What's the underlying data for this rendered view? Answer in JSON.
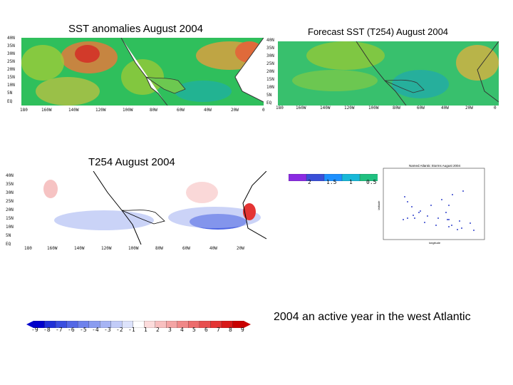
{
  "panels": {
    "sst": {
      "title": "SST anomalies August 2004",
      "lat_labels": [
        "40N",
        "35N",
        "30N",
        "25N",
        "20N",
        "15N",
        "10N",
        "5N",
        "EQ"
      ],
      "lon_labels": [
        "180",
        "160W",
        "140W",
        "120W",
        "100W",
        "80W",
        "60W",
        "40W",
        "20W",
        "0"
      ]
    },
    "forecast": {
      "title": "Forecast SST (T254) August 2004",
      "lat_labels": [
        "40N",
        "35N",
        "30N",
        "25N",
        "20N",
        "15N",
        "10N",
        "5N",
        "EQ"
      ],
      "lon_labels": [
        "180",
        "160W",
        "140W",
        "120W",
        "100W",
        "80W",
        "60W",
        "40W",
        "20W",
        "0"
      ]
    },
    "t254": {
      "title": "T254 August 2004",
      "lat_labels": [
        "40N",
        "35N",
        "30N",
        "25N",
        "20N",
        "15N",
        "10N",
        "5N",
        "EQ"
      ],
      "lon_labels": [
        "180",
        "160W",
        "140W",
        "120W",
        "100W",
        "80W",
        "60W",
        "40W",
        "20W"
      ]
    },
    "tracks": {
      "title": "Named Atlantic Storms August 2004",
      "xlabel": "longitude",
      "ylabel": "latitude"
    }
  },
  "colorbars": {
    "small": {
      "labels": [
        "2",
        "1.5",
        "1",
        "0.5"
      ],
      "colors": [
        "#8a2be2",
        "#3a4fd8",
        "#1e90ff",
        "#18b8d8",
        "#20c080"
      ]
    },
    "big": {
      "labels": [
        "-9",
        "-8",
        "-7",
        "-6",
        "-5",
        "-4",
        "-3",
        "-2",
        "-1",
        "1",
        "2",
        "3",
        "4",
        "5",
        "6",
        "7",
        "8",
        "9"
      ],
      "colors": [
        "#0000cc",
        "#2030d8",
        "#3a4ee0",
        "#5468e6",
        "#6e82ec",
        "#8a9cf0",
        "#a6b4f4",
        "#c2ccf8",
        "#dde3fb",
        "#ffffff",
        "#fcdcdc",
        "#f8c0c0",
        "#f4a4a4",
        "#f08888",
        "#ec6c6c",
        "#e85050",
        "#e43434",
        "#d81818",
        "#c80000"
      ]
    }
  },
  "caption": "2004 an active year in the west Atlantic"
}
